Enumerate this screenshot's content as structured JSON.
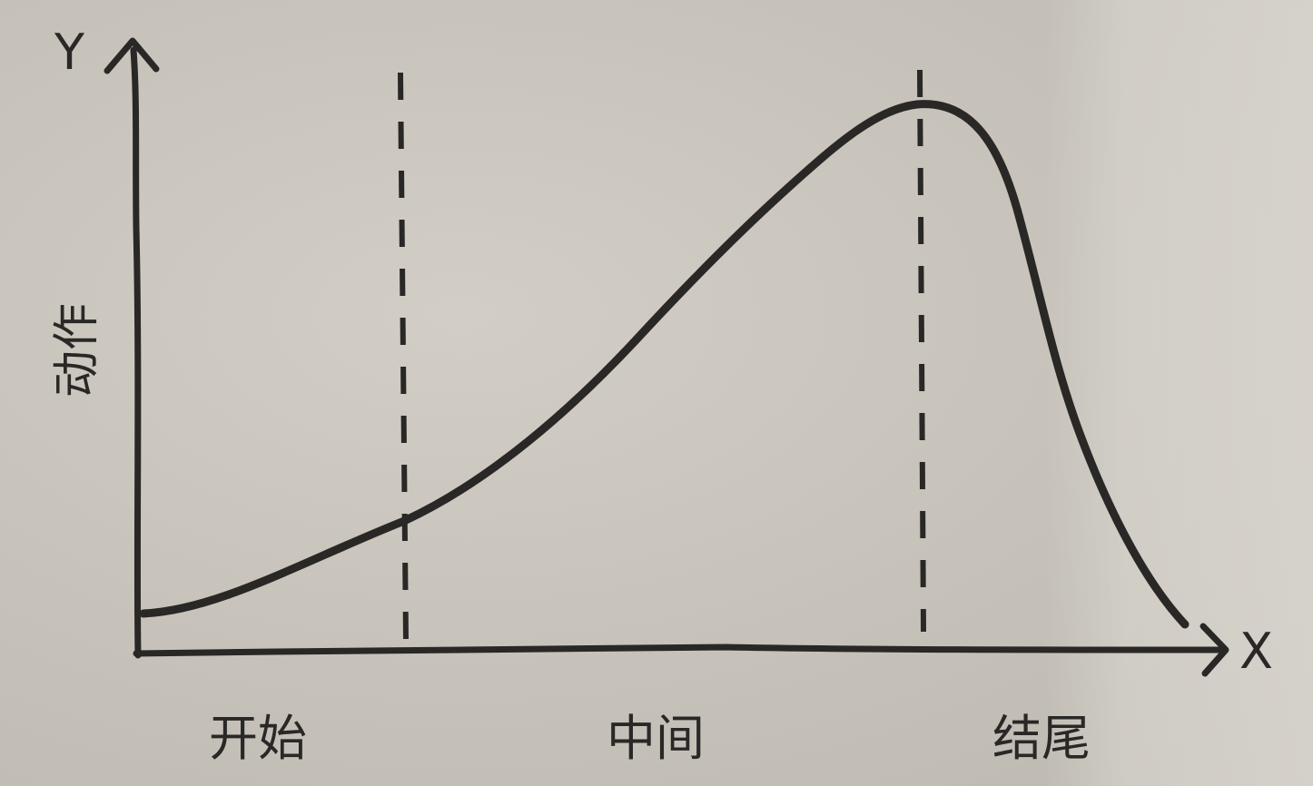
{
  "diagram": {
    "y_axis_letter": "Y",
    "x_axis_letter": "X",
    "y_axis_label": "动作",
    "section_labels": [
      "开始",
      "中间",
      "结尾"
    ]
  },
  "colors": {
    "ink": "#2a2826",
    "paper": "#c9c5bd"
  }
}
